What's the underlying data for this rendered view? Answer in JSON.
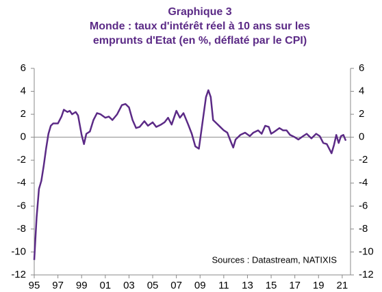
{
  "chart_data": {
    "type": "line",
    "title": "Graphique 3",
    "subtitle": [
      "Monde : taux d'intérêt réel à 10 ans sur les",
      "emprunts d'Etat (en %, déflaté par le CPI)"
    ],
    "annotation": "Sources : Datastream, NATIXIS",
    "xlim": [
      1995,
      2021.7
    ],
    "xticks": [
      {
        "value": 1995,
        "label": "95"
      },
      {
        "value": 1997,
        "label": "97"
      },
      {
        "value": 1999,
        "label": "99"
      },
      {
        "value": 2001,
        "label": "01"
      },
      {
        "value": 2003,
        "label": "03"
      },
      {
        "value": 2005,
        "label": "05"
      },
      {
        "value": 2007,
        "label": "07"
      },
      {
        "value": 2009,
        "label": "09"
      },
      {
        "value": 2011,
        "label": "11"
      },
      {
        "value": 2013,
        "label": "13"
      },
      {
        "value": 2015,
        "label": "15"
      },
      {
        "value": 2017,
        "label": "17"
      },
      {
        "value": 2019,
        "label": "19"
      },
      {
        "value": 2021,
        "label": "21"
      }
    ],
    "ylim": [
      -12,
      6
    ],
    "yticks": [
      -12,
      -10,
      -8,
      -6,
      -4,
      -2,
      0,
      2,
      4,
      6
    ],
    "y2lim": [
      -12,
      6
    ],
    "y2ticks": [
      -12,
      -10,
      -8,
      -6,
      -4,
      -2,
      0,
      2,
      4,
      6
    ],
    "x": [
      1995.0,
      1995.2,
      1995.4,
      1995.6,
      1995.8,
      1996.0,
      1996.2,
      1996.4,
      1996.6,
      1997.0,
      1997.3,
      1997.5,
      1997.8,
      1998.0,
      1998.2,
      1998.5,
      1998.7,
      1999.0,
      1999.2,
      1999.4,
      1999.7,
      2000.0,
      2000.3,
      2000.6,
      2001.0,
      2001.3,
      2001.6,
      2002.0,
      2002.4,
      2002.7,
      2003.0,
      2003.3,
      2003.6,
      2003.9,
      2004.3,
      2004.6,
      2005.0,
      2005.3,
      2005.7,
      2006.0,
      2006.3,
      2006.6,
      2007.0,
      2007.3,
      2007.6,
      2008.0,
      2008.3,
      2008.6,
      2008.9,
      2009.1,
      2009.3,
      2009.5,
      2009.7,
      2009.9,
      2010.1,
      2010.4,
      2010.7,
      2011.0,
      2011.3,
      2011.6,
      2011.8,
      2012.0,
      2012.4,
      2012.8,
      2013.2,
      2013.5,
      2013.9,
      2014.2,
      2014.5,
      2014.8,
      2015.0,
      2015.3,
      2015.7,
      2016.0,
      2016.3,
      2016.6,
      2017.0,
      2017.3,
      2017.7,
      2018.0,
      2018.4,
      2018.8,
      2019.1,
      2019.4,
      2019.7,
      2019.9,
      2020.1,
      2020.3,
      2020.5,
      2020.7,
      2020.9,
      2021.1,
      2021.3
    ],
    "series": [
      {
        "color": "#5b2a86",
        "values": [
          -10.7,
          -7,
          -4.5,
          -3.8,
          -2.5,
          -1,
          0.3,
          1.0,
          1.2,
          1.2,
          1.8,
          2.4,
          2.2,
          2.3,
          2.0,
          2.2,
          1.9,
          0.2,
          -0.6,
          0.3,
          0.5,
          1.5,
          2.1,
          2.0,
          1.7,
          1.8,
          1.5,
          2.0,
          2.8,
          2.9,
          2.6,
          1.5,
          0.8,
          0.9,
          1.4,
          1.0,
          1.3,
          0.9,
          1.1,
          1.3,
          1.7,
          1.1,
          2.3,
          1.7,
          2.1,
          1.1,
          0.3,
          -0.8,
          -1.0,
          0.5,
          2.0,
          3.5,
          4.1,
          3.5,
          1.5,
          1.2,
          0.9,
          0.6,
          0.4,
          -0.4,
          -0.9,
          -0.2,
          0.2,
          0.4,
          0.1,
          0.4,
          0.6,
          0.3,
          1.0,
          0.9,
          0.3,
          0.5,
          0.8,
          0.6,
          0.6,
          0.2,
          0.0,
          -0.2,
          0.1,
          0.3,
          -0.1,
          0.3,
          0.1,
          -0.5,
          -0.6,
          -1.0,
          -1.4,
          -0.7,
          0.2,
          -0.5,
          0.1,
          0.2,
          -0.3
        ]
      }
    ]
  }
}
